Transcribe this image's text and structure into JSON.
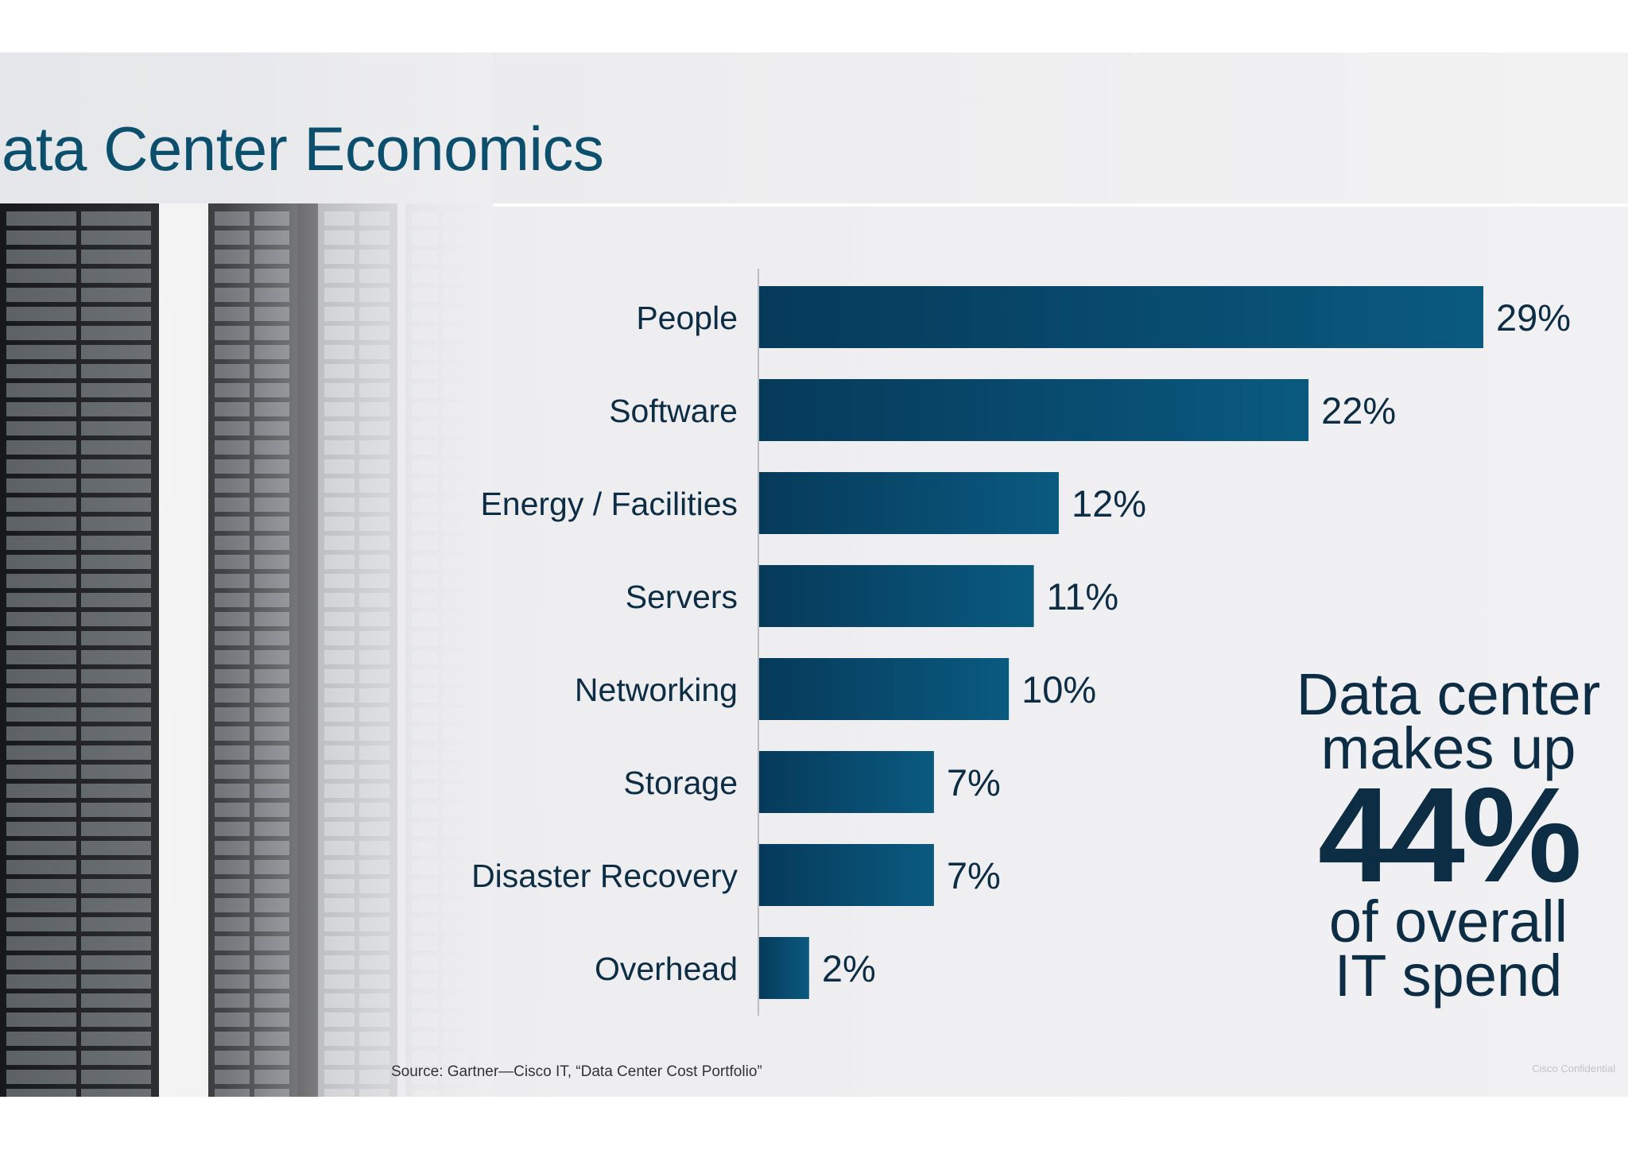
{
  "slide": {
    "title": "ata Center Economics",
    "source": "Source: Gartner—Cisco IT, “Data Center Cost Portfolio”",
    "confidential": "Cisco Confidential"
  },
  "callout": {
    "line1": "Data center",
    "line2": "makes up",
    "big": "44%",
    "line3": "of overall",
    "line4": "IT spend"
  },
  "colors": {
    "title": "#0b4f6c",
    "bar_dark": "#063a5a",
    "bar_light": "#0a5a80",
    "label": "#0d2d45"
  },
  "chart_data": {
    "type": "bar",
    "orientation": "horizontal",
    "categories": [
      "People",
      "Software",
      "Energy / Facilities",
      "Servers",
      "Networking",
      "Storage",
      "Disaster Recovery",
      "Overhead"
    ],
    "values": [
      29,
      22,
      12,
      11,
      10,
      7,
      7,
      2
    ],
    "data_labels": [
      "29%",
      "22%",
      "12%",
      "11%",
      "10%",
      "7%",
      "7%",
      "2%"
    ],
    "unit": "%",
    "xlim": [
      0,
      29
    ],
    "grid": false,
    "legend": "none"
  }
}
